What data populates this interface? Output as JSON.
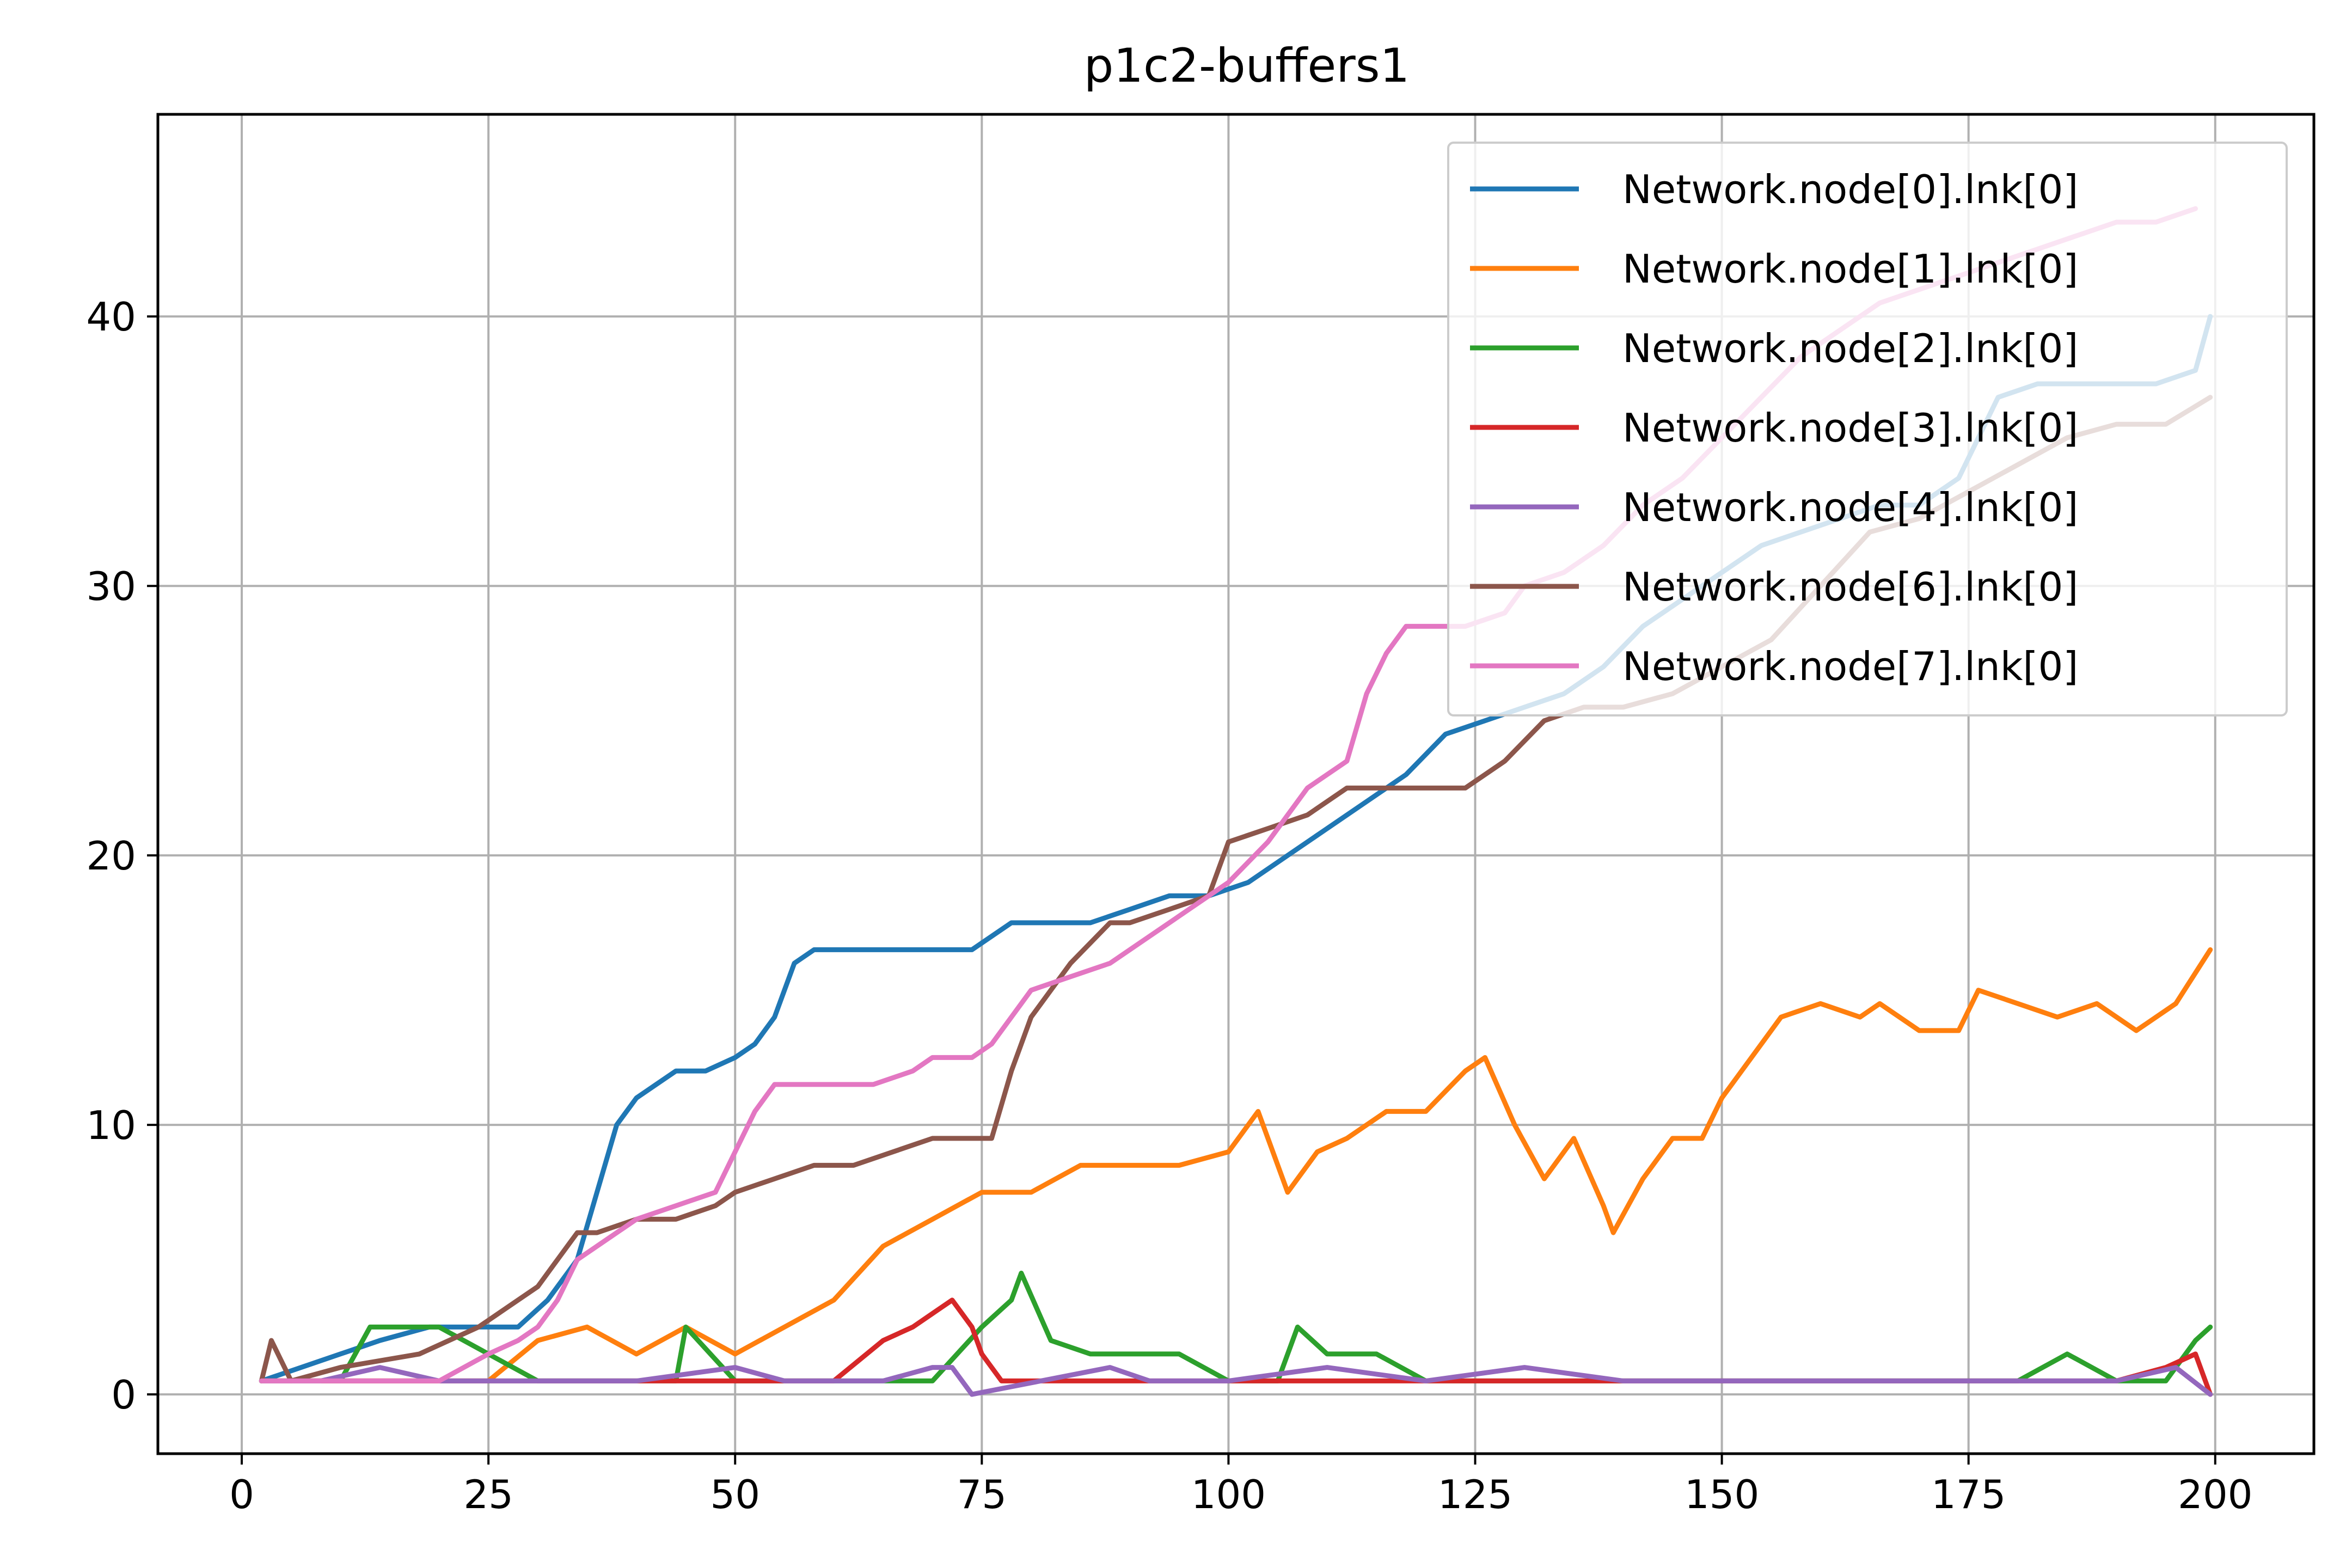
{
  "chart_data": {
    "type": "line",
    "title": "p1c2-buffers1",
    "xlabel": "",
    "ylabel": "",
    "xlim": [
      -8.5,
      210
    ],
    "ylim": [
      -2.2,
      47.5
    ],
    "xticks": [
      0,
      25,
      50,
      75,
      100,
      125,
      150,
      175,
      200
    ],
    "yticks": [
      0,
      10,
      20,
      30,
      40
    ],
    "grid": true,
    "legend": "top-right",
    "series": [
      {
        "name": "Network.node[0].lnk[0]",
        "color": "#1f77b4",
        "x": [
          2,
          10,
          14,
          19,
          24,
          28,
          31,
          34,
          36,
          38,
          40,
          42,
          44,
          47,
          50,
          52,
          54,
          56,
          58,
          62,
          66,
          70,
          74,
          78,
          82,
          86,
          90,
          94,
          98,
          102,
          106,
          110,
          114,
          118,
          122,
          126,
          130,
          134,
          138,
          142,
          146,
          150,
          154,
          158,
          162,
          166,
          170,
          174,
          178,
          182,
          186,
          190,
          194,
          198,
          199.5
        ],
        "y": [
          0.5,
          1.5,
          2,
          2.5,
          2.5,
          2.5,
          3.5,
          5,
          7.5,
          10,
          11,
          11.5,
          12,
          12,
          12.5,
          13,
          14,
          16,
          16.5,
          16.5,
          16.5,
          16.5,
          16.5,
          17.5,
          17.5,
          17.5,
          18,
          18.5,
          18.5,
          19,
          20,
          21,
          22,
          23,
          24.5,
          25,
          25.5,
          26,
          27,
          28.5,
          29.5,
          30.5,
          31.5,
          32,
          32.5,
          33,
          33,
          34,
          37,
          37.5,
          37.5,
          37.5,
          37.5,
          38,
          40
        ]
      },
      {
        "name": "Network.node[1].lnk[0]",
        "color": "#ff7f0e",
        "x": [
          2,
          10,
          20,
          25,
          30,
          35,
          40,
          45,
          50,
          55,
          60,
          65,
          70,
          75,
          80,
          85,
          90,
          95,
          100,
          103,
          106,
          109,
          112,
          116,
          120,
          124,
          126,
          129,
          132,
          135,
          138,
          139,
          142,
          145,
          148,
          150,
          153,
          156,
          160,
          164,
          166,
          170,
          174,
          176,
          180,
          184,
          188,
          192,
          196,
          199.5
        ],
        "y": [
          0.5,
          0.5,
          0.5,
          0.5,
          2,
          2.5,
          1.5,
          2.5,
          1.5,
          2.5,
          3.5,
          5.5,
          6.5,
          7.5,
          7.5,
          8.5,
          8.5,
          8.5,
          9,
          10.5,
          7.5,
          9,
          9.5,
          10.5,
          10.5,
          12,
          12.5,
          10,
          8,
          9.5,
          7,
          6,
          8,
          9.5,
          9.5,
          11,
          12.5,
          14,
          14.5,
          14,
          14.5,
          13.5,
          13.5,
          15,
          14.5,
          14,
          14.5,
          13.5,
          14.5,
          16.5
        ]
      },
      {
        "name": "Network.node[2].lnk[0]",
        "color": "#2ca02c",
        "x": [
          2,
          10,
          13,
          20,
          25,
          30,
          40,
          44,
          45,
          50,
          60,
          70,
          75,
          78,
          79,
          82,
          86,
          90,
          95,
          100,
          105,
          107,
          110,
          115,
          120,
          130,
          140,
          150,
          160,
          170,
          180,
          185,
          190,
          195,
          198,
          199.5
        ],
        "y": [
          0.5,
          0.5,
          2.5,
          2.5,
          1.5,
          0.5,
          0.5,
          0.5,
          2.5,
          0.5,
          0.5,
          0.5,
          2.5,
          3.5,
          4.5,
          2,
          1.5,
          1.5,
          1.5,
          0.5,
          0.5,
          2.5,
          1.5,
          1.5,
          0.5,
          0.5,
          0.5,
          0.5,
          0.5,
          0.5,
          0.5,
          1.5,
          0.5,
          0.5,
          2,
          2.5
        ]
      },
      {
        "name": "Network.node[3].lnk[0]",
        "color": "#d62728",
        "x": [
          2,
          10,
          20,
          30,
          40,
          50,
          60,
          65,
          68,
          70,
          72,
          74,
          75,
          77,
          80,
          90,
          100,
          110,
          120,
          130,
          140,
          150,
          160,
          170,
          180,
          190,
          195,
          198,
          199.5
        ],
        "y": [
          0.5,
          0.5,
          0.5,
          0.5,
          0.5,
          0.5,
          0.5,
          2,
          2.5,
          3,
          3.5,
          2.5,
          1.5,
          0.5,
          0.5,
          0.5,
          0.5,
          0.5,
          0.5,
          0.5,
          0.5,
          0.5,
          0.5,
          0.5,
          0.5,
          0.5,
          1,
          1.5,
          0
        ]
      },
      {
        "name": "Network.node[4].lnk[0]",
        "color": "#9467bd",
        "x": [
          2,
          8,
          14,
          20,
          30,
          40,
          50,
          55,
          60,
          65,
          70,
          72,
          74,
          88,
          92,
          100,
          110,
          120,
          130,
          140,
          150,
          160,
          170,
          180,
          190,
          196,
          199.5
        ],
        "y": [
          0.5,
          0.5,
          1,
          0.5,
          0.5,
          0.5,
          1,
          0.5,
          0.5,
          0.5,
          1,
          1,
          0,
          1,
          0.5,
          0.5,
          1,
          0.5,
          1,
          0.5,
          0.5,
          0.5,
          0.5,
          0.5,
          0.5,
          1,
          0
        ]
      },
      {
        "name": "Network.node[6].lnk[0]",
        "color": "#8c564b",
        "x": [
          2,
          3,
          5,
          10,
          18,
          24,
          26,
          28,
          30,
          32,
          34,
          36,
          40,
          44,
          48,
          50,
          54,
          58,
          62,
          66,
          70,
          74,
          76,
          78,
          80,
          84,
          88,
          90,
          94,
          98,
          100,
          104,
          108,
          112,
          116,
          120,
          124,
          128,
          132,
          136,
          140,
          145,
          150,
          155,
          160,
          165,
          170,
          175,
          180,
          185,
          190,
          195,
          199.5
        ],
        "y": [
          0.5,
          2,
          0.5,
          1,
          1.5,
          2.5,
          3,
          3.5,
          4,
          5,
          6,
          6,
          6.5,
          6.5,
          7,
          7.5,
          8,
          8.5,
          8.5,
          9,
          9.5,
          9.5,
          9.5,
          12,
          14,
          16,
          17.5,
          17.5,
          18,
          18.5,
          20.5,
          21,
          21.5,
          22.5,
          22.5,
          22.5,
          22.5,
          23.5,
          25,
          25.5,
          25.5,
          26,
          27,
          28,
          30,
          32,
          32.5,
          33.5,
          34.5,
          35.5,
          36,
          36,
          37
        ]
      },
      {
        "name": "Network.node[7].lnk[0]",
        "color": "#e377c2",
        "x": [
          2,
          10,
          20,
          25,
          28,
          30,
          32,
          34,
          36,
          40,
          44,
          48,
          50,
          52,
          54,
          56,
          60,
          64,
          68,
          70,
          74,
          76,
          78,
          80,
          84,
          88,
          92,
          96,
          100,
          104,
          108,
          112,
          114,
          116,
          118,
          120,
          124,
          128,
          130,
          134,
          138,
          142,
          146,
          150,
          154,
          158,
          162,
          166,
          170,
          174,
          178,
          182,
          186,
          190,
          194,
          198
        ],
        "y": [
          0.5,
          0.5,
          0.5,
          1.5,
          2,
          2.5,
          3.5,
          5,
          5.5,
          6.5,
          7,
          7.5,
          9,
          10.5,
          11.5,
          11.5,
          11.5,
          11.5,
          12,
          12.5,
          12.5,
          13,
          14,
          15,
          15.5,
          16,
          17,
          18,
          19,
          20.5,
          22.5,
          23.5,
          26,
          27.5,
          28.5,
          28.5,
          28.5,
          29,
          30,
          30.5,
          31.5,
          33,
          34,
          35.5,
          37,
          38.5,
          39.5,
          40.5,
          41,
          41.5,
          42,
          42.5,
          43,
          43.5,
          43.5,
          44
        ]
      }
    ]
  }
}
